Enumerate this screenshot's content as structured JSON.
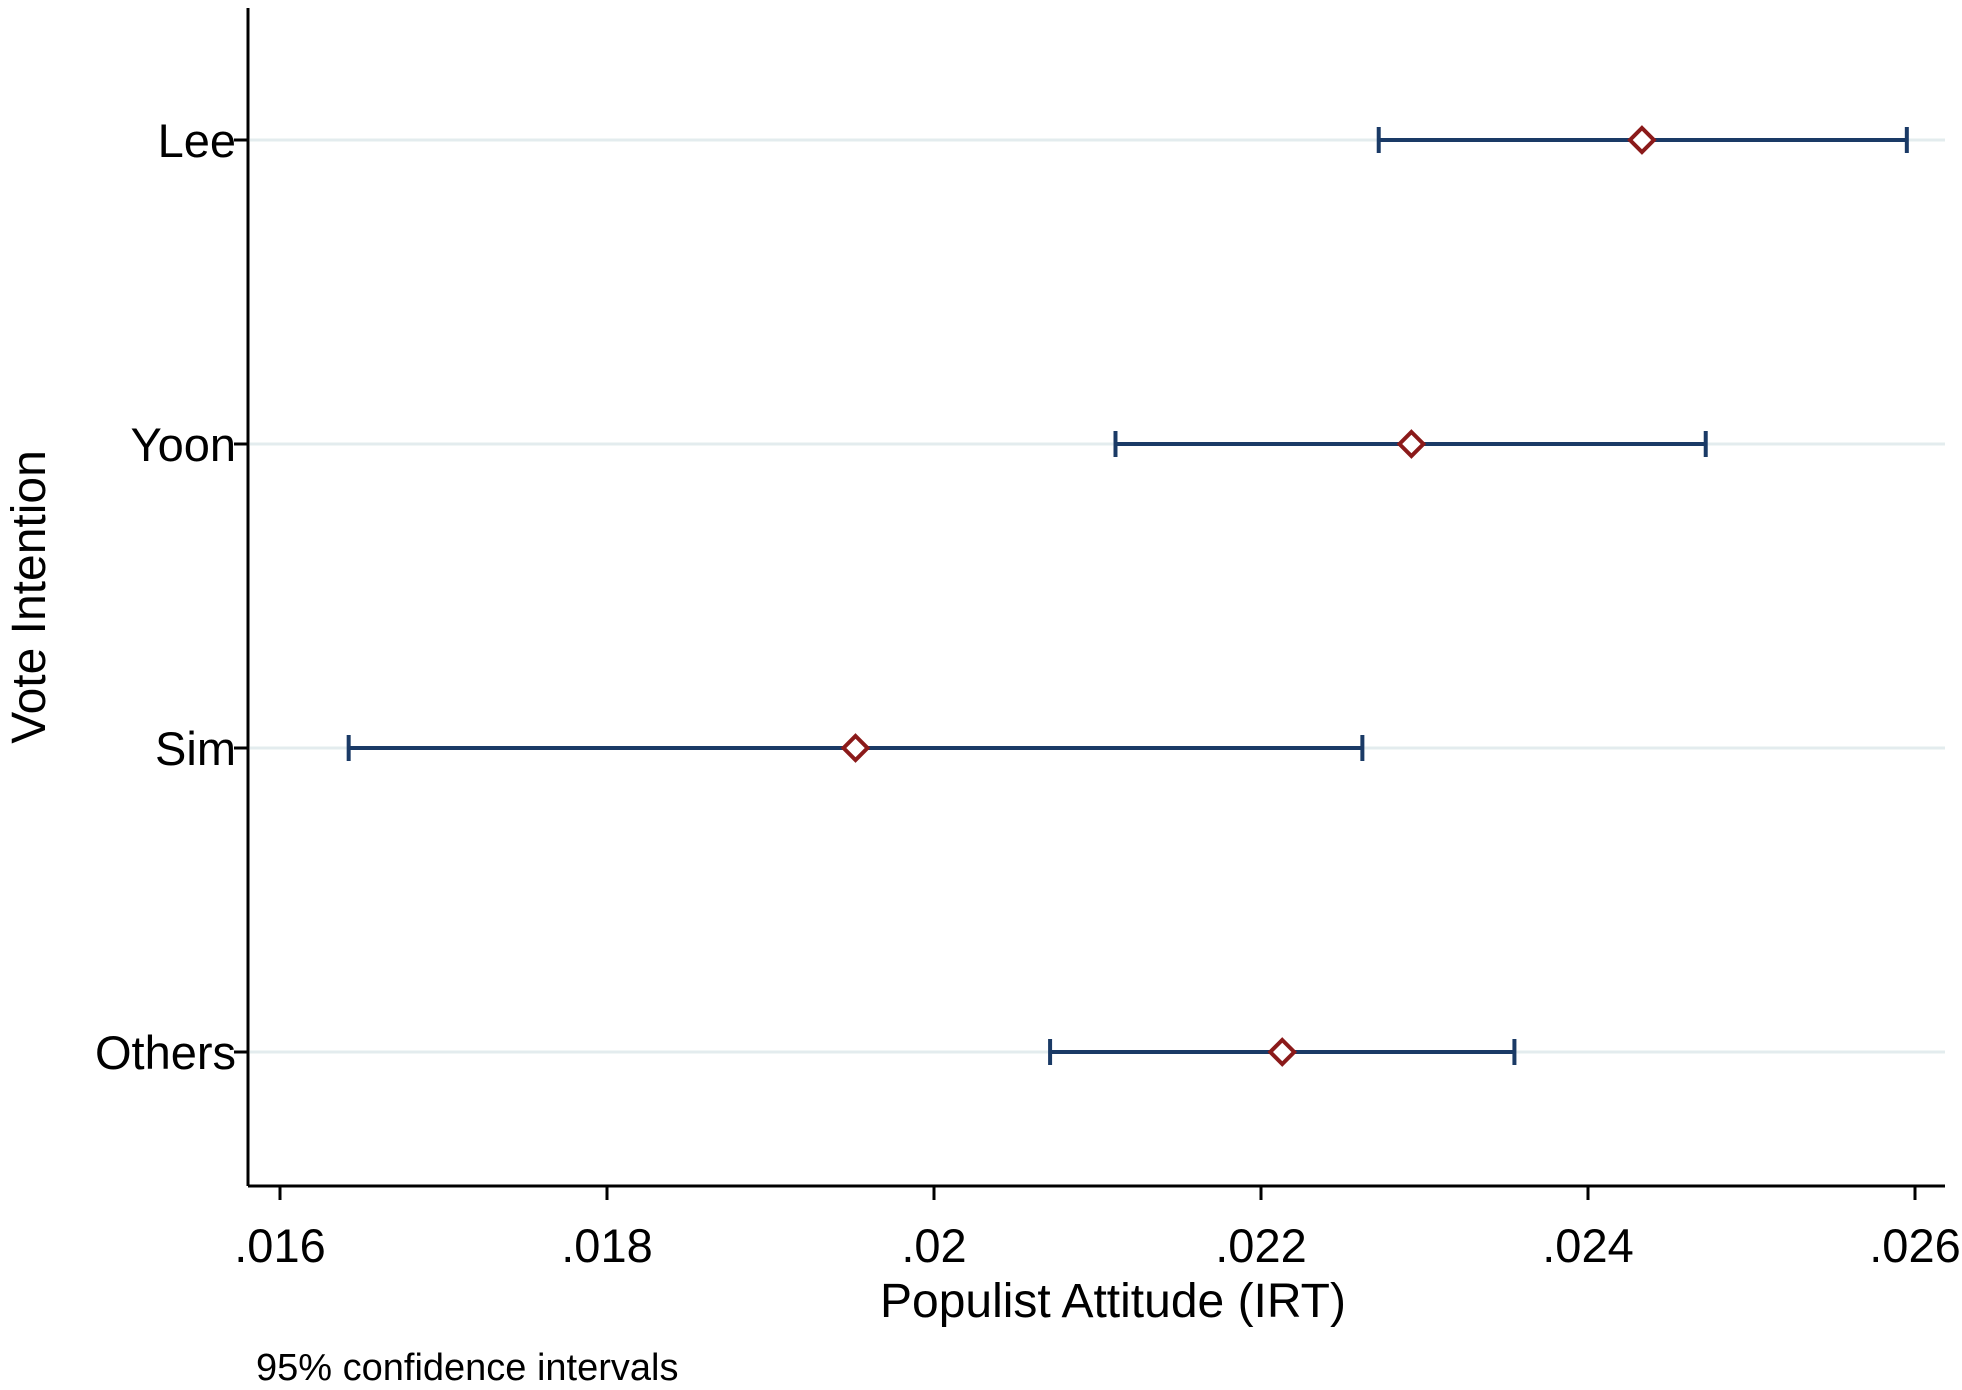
{
  "chart_data": {
    "type": "scatter",
    "subtype": "dot-with-confidence-interval",
    "xlabel": "Populist Attitude (IRT)",
    "ylabel": "Vote Intention",
    "note": "95% confidence intervals",
    "xlim": [
      0.016,
      0.026
    ],
    "x_ticks": [
      0.016,
      0.018,
      0.02,
      0.022,
      0.024,
      0.026
    ],
    "x_tick_labels": [
      ".016",
      ".018",
      ".02",
      ".022",
      ".024",
      ".026"
    ],
    "categories": [
      "Lee",
      "Yoon",
      "Sim",
      "Others"
    ],
    "points": [
      {
        "category": "Lee",
        "estimate": 0.02433,
        "ci_low": 0.02272,
        "ci_high": 0.02595
      },
      {
        "category": "Yoon",
        "estimate": 0.02292,
        "ci_low": 0.02111,
        "ci_high": 0.02472
      },
      {
        "category": "Sim",
        "estimate": 0.01952,
        "ci_low": 0.01642,
        "ci_high": 0.02262
      },
      {
        "category": "Others",
        "estimate": 0.02213,
        "ci_low": 0.02071,
        "ci_high": 0.02355
      }
    ],
    "grid": "horizontal-only",
    "colors": {
      "ci_line": "#1a3a66",
      "marker": "#8b1a1a",
      "grid": "#e3ecee",
      "axis": "#000000"
    }
  }
}
